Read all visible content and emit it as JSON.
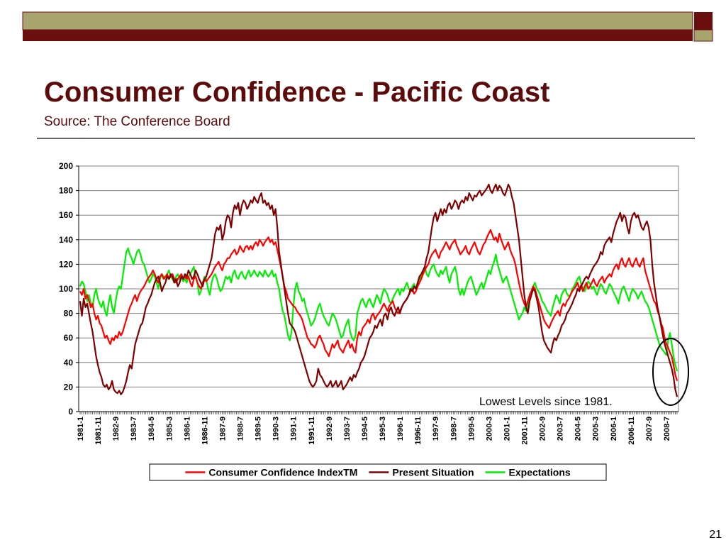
{
  "header": {
    "title": "Consumer Confidence - Pacific Coast",
    "subtitle": "Source:  The Conference Board"
  },
  "page_number": "21",
  "chart_data": {
    "type": "line",
    "annotation": "Lowest Levels since 1981.",
    "ylim": [
      0,
      200
    ],
    "yticks": [
      0,
      20,
      40,
      60,
      80,
      100,
      120,
      140,
      160,
      180,
      200
    ],
    "grid": true,
    "legend": "bottom",
    "categories": [
      "1981-1",
      null,
      null,
      null,
      null,
      null,
      null,
      null,
      null,
      null,
      "1981-11",
      null,
      null,
      null,
      null,
      null,
      null,
      null,
      null,
      null,
      "1982-9",
      null,
      null,
      null,
      null,
      null,
      null,
      null,
      null,
      null,
      "1983-7",
      null,
      null,
      null,
      null,
      null,
      null,
      null,
      null,
      null,
      "1984-5",
      null,
      null,
      null,
      null,
      null,
      null,
      null,
      null,
      null,
      "1985-3",
      null,
      null,
      null,
      null,
      null,
      null,
      null,
      null,
      null,
      "1986-1",
      null,
      null,
      null,
      null,
      null,
      null,
      null,
      null,
      null,
      "1986-11",
      null,
      null,
      null,
      null,
      null,
      null,
      null,
      null,
      null,
      "1987-9",
      null,
      null,
      null,
      null,
      null,
      null,
      null,
      null,
      null,
      "1988-7",
      null,
      null,
      null,
      null,
      null,
      null,
      null,
      null,
      null,
      "1989-5",
      null,
      null,
      null,
      null,
      null,
      null,
      null,
      null,
      null,
      "1990-3",
      null,
      null,
      null,
      null,
      null,
      null,
      null,
      null,
      null,
      "1991-1",
      null,
      null,
      null,
      null,
      null,
      null,
      null,
      null,
      null,
      "1991-11",
      null,
      null,
      null,
      null,
      null,
      null,
      null,
      null,
      null,
      "1992-9",
      null,
      null,
      null,
      null,
      null,
      null,
      null,
      null,
      null,
      "1993-7",
      null,
      null,
      null,
      null,
      null,
      null,
      null,
      null,
      null,
      "1994-5",
      null,
      null,
      null,
      null,
      null,
      null,
      null,
      null,
      null,
      "1995-3",
      null,
      null,
      null,
      null,
      null,
      null,
      null,
      null,
      null,
      "1996-1",
      null,
      null,
      null,
      null,
      null,
      null,
      null,
      null,
      null,
      "1996-11",
      null,
      null,
      null,
      null,
      null,
      null,
      null,
      null,
      null,
      "1997-9",
      null,
      null,
      null,
      null,
      null,
      null,
      null,
      null,
      null,
      "1998-7",
      null,
      null,
      null,
      null,
      null,
      null,
      null,
      null,
      null,
      "1999-5",
      null,
      null,
      null,
      null,
      null,
      null,
      null,
      null,
      null,
      "2000-3",
      null,
      null,
      null,
      null,
      null,
      null,
      null,
      null,
      null,
      "2001-1",
      null,
      null,
      null,
      null,
      null,
      null,
      null,
      null,
      null,
      "2001-11",
      null,
      null,
      null,
      null,
      null,
      null,
      null,
      null,
      null,
      "2002-9",
      null,
      null,
      null,
      null,
      null,
      null,
      null,
      null,
      null,
      "2003-7",
      null,
      null,
      null,
      null,
      null,
      null,
      null,
      null,
      null,
      "2004-5",
      null,
      null,
      null,
      null,
      null,
      null,
      null,
      null,
      null,
      "2005-3",
      null,
      null,
      null,
      null,
      null,
      null,
      null,
      null,
      null,
      "2006-1",
      null,
      null,
      null,
      null,
      null,
      null,
      null,
      null,
      null,
      "2006-11",
      null,
      null,
      null,
      null,
      null,
      null,
      null,
      null,
      null,
      "2007-9",
      null,
      null,
      null,
      null,
      null,
      null,
      null,
      null,
      null,
      "2008-7",
      null,
      null,
      null,
      null,
      null,
      null
    ],
    "series": [
      {
        "name": "Consumer Confidence IndexTM",
        "color": "#ff0000",
        "values": [
          98,
          95,
          100,
          92,
          95,
          90,
          85,
          88,
          80,
          75,
          78,
          72,
          70,
          65,
          60,
          62,
          58,
          55,
          60,
          58,
          62,
          60,
          65,
          62,
          65,
          70,
          75,
          80,
          85,
          88,
          92,
          95,
          90,
          95,
          98,
          100,
          102,
          105,
          108,
          110,
          112,
          115,
          112,
          108,
          105,
          110,
          112,
          108,
          110,
          112,
          108,
          110,
          112,
          108,
          105,
          108,
          110,
          112,
          108,
          110,
          108,
          110,
          105,
          102,
          108,
          110,
          105,
          102,
          100,
          105,
          108,
          106,
          108,
          110,
          112,
          115,
          118,
          120,
          122,
          118,
          115,
          120,
          122,
          125,
          125,
          128,
          130,
          132,
          128,
          130,
          135,
          132,
          130,
          134,
          135,
          132,
          135,
          132,
          136,
          138,
          135,
          140,
          138,
          135,
          138,
          140,
          142,
          138,
          140,
          136,
          138,
          132,
          125,
          118,
          110,
          102,
          98,
          92,
          90,
          88,
          86,
          85,
          82,
          80,
          78,
          75,
          70,
          65,
          60,
          58,
          55,
          54,
          52,
          55,
          60,
          62,
          58,
          55,
          50,
          48,
          45,
          50,
          55,
          52,
          55,
          58,
          52,
          50,
          48,
          52,
          55,
          58,
          52,
          55,
          50,
          48,
          60,
          65,
          62,
          68,
          70,
          72,
          75,
          72,
          78,
          80,
          75,
          78,
          80,
          82,
          85,
          88,
          85,
          82,
          86,
          88,
          90,
          85,
          82,
          80,
          82,
          85,
          88,
          90,
          92,
          95,
          98,
          100,
          96,
          98,
          102,
          105,
          108,
          112,
          115,
          118,
          120,
          125,
          128,
          130,
          132,
          128,
          125,
          130,
          132,
          135,
          138,
          135,
          132,
          136,
          138,
          140,
          135,
          132,
          128,
          130,
          132,
          135,
          130,
          128,
          132,
          135,
          138,
          134,
          130,
          128,
          132,
          136,
          138,
          142,
          145,
          148,
          144,
          140,
          142,
          138,
          145,
          140,
          136,
          132,
          135,
          138,
          132,
          128,
          125,
          120,
          112,
          105,
          98,
          92,
          88,
          85,
          90,
          95,
          98,
          102,
          100,
          95,
          90,
          85,
          80,
          75,
          72,
          70,
          68,
          72,
          75,
          78,
          80,
          82,
          78,
          85,
          88,
          86,
          90,
          92,
          95,
          98,
          100,
          102,
          105,
          100,
          103,
          98,
          102,
          105,
          100,
          102,
          105,
          108,
          104,
          102,
          106,
          108,
          110,
          105,
          108,
          110,
          112,
          110,
          115,
          118,
          120,
          116,
          122,
          125,
          120,
          118,
          122,
          125,
          120,
          118,
          122,
          125,
          120,
          118,
          122,
          125,
          115,
          110,
          105,
          100,
          95,
          90,
          88,
          82,
          78,
          72,
          68,
          60,
          55,
          52,
          48,
          45,
          38,
          30,
          25
        ]
      },
      {
        "name": "Present Situation",
        "color": "#800000",
        "values": [
          90,
          78,
          92,
          85,
          88,
          80,
          72,
          65,
          55,
          45,
          38,
          32,
          28,
          22,
          20,
          22,
          18,
          20,
          25,
          18,
          16,
          15,
          17,
          14,
          16,
          20,
          25,
          32,
          38,
          35,
          45,
          55,
          60,
          65,
          70,
          72,
          78,
          85,
          88,
          92,
          95,
          100,
          105,
          108,
          110,
          105,
          98,
          102,
          105,
          110,
          108,
          112,
          110,
          105,
          108,
          102,
          105,
          110,
          108,
          112,
          110,
          115,
          112,
          108,
          110,
          115,
          112,
          108,
          105,
          102,
          108,
          110,
          115,
          120,
          125,
          135,
          145,
          150,
          148,
          152,
          140,
          145,
          155,
          160,
          158,
          150,
          162,
          168,
          165,
          170,
          160,
          168,
          172,
          170,
          165,
          168,
          172,
          170,
          175,
          172,
          170,
          175,
          178,
          170,
          172,
          168,
          170,
          165,
          168,
          160,
          165,
          150,
          130,
          120,
          110,
          100,
          90,
          80,
          72,
          70,
          68,
          65,
          60,
          55,
          50,
          45,
          40,
          35,
          30,
          25,
          22,
          20,
          22,
          25,
          35,
          30,
          28,
          25,
          22,
          20,
          22,
          25,
          20,
          22,
          25,
          20,
          22,
          25,
          18,
          20,
          22,
          25,
          28,
          25,
          30,
          28,
          32,
          35,
          40,
          42,
          45,
          50,
          55,
          60,
          62,
          65,
          70,
          68,
          72,
          75,
          70,
          78,
          80,
          75,
          82,
          85,
          80,
          78,
          82,
          85,
          80,
          85,
          88,
          90,
          92,
          95,
          100,
          98,
          102,
          100,
          105,
          110,
          112,
          115,
          118,
          125,
          130,
          140,
          150,
          158,
          162,
          155,
          160,
          165,
          160,
          165,
          162,
          168,
          170,
          165,
          168,
          172,
          170,
          165,
          170,
          172,
          170,
          175,
          172,
          178,
          175,
          172,
          176,
          175,
          178,
          180,
          176,
          178,
          180,
          182,
          185,
          180,
          178,
          182,
          185,
          180,
          184,
          182,
          178,
          176,
          180,
          185,
          182,
          175,
          170,
          160,
          150,
          140,
          125,
          110,
          95,
          85,
          80,
          90,
          95,
          100,
          98,
          92,
          85,
          75,
          65,
          58,
          55,
          52,
          50,
          48,
          55,
          60,
          58,
          62,
          65,
          70,
          72,
          75,
          80,
          82,
          85,
          88,
          92,
          95,
          100,
          98,
          102,
          105,
          108,
          110,
          108,
          112,
          115,
          118,
          120,
          122,
          125,
          130,
          128,
          135,
          138,
          140,
          142,
          138,
          145,
          150,
          155,
          158,
          162,
          155,
          160,
          158,
          150,
          145,
          155,
          160,
          162,
          158,
          160,
          155,
          150,
          148,
          152,
          155,
          150,
          140,
          120,
          105,
          95,
          85,
          78,
          70,
          62,
          55,
          50,
          45,
          40,
          35,
          28,
          18,
          12
        ]
      },
      {
        "name": "Expectations",
        "color": "#00ee00",
        "values": [
          102,
          106,
          104,
          98,
          90,
          95,
          88,
          85,
          95,
          100,
          92,
          88,
          85,
          90,
          82,
          78,
          88,
          95,
          85,
          80,
          90,
          98,
          102,
          100,
          110,
          120,
          130,
          133,
          128,
          125,
          120,
          125,
          130,
          132,
          128,
          122,
          120,
          115,
          110,
          105,
          108,
          112,
          110,
          105,
          100,
          108,
          112,
          110,
          108,
          112,
          115,
          110,
          108,
          105,
          110,
          112,
          108,
          110,
          106,
          108,
          105,
          110,
          112,
          115,
          118,
          110,
          105,
          95,
          98,
          105,
          110,
          108,
          100,
          95,
          105,
          110,
          112,
          108,
          102,
          98,
          100,
          105,
          110,
          108,
          110,
          105,
          112,
          115,
          110,
          108,
          112,
          114,
          110,
          108,
          112,
          115,
          110,
          112,
          115,
          112,
          110,
          114,
          112,
          110,
          115,
          112,
          110,
          112,
          115,
          110,
          112,
          105,
          100,
          90,
          82,
          78,
          70,
          62,
          58,
          65,
          85,
          100,
          105,
          98,
          95,
          90,
          92,
          85,
          80,
          75,
          70,
          72,
          75,
          80,
          85,
          88,
          82,
          78,
          75,
          72,
          70,
          75,
          80,
          78,
          75,
          70,
          65,
          60,
          62,
          68,
          72,
          75,
          65,
          60,
          58,
          62,
          80,
          85,
          90,
          92,
          88,
          85,
          90,
          92,
          88,
          85,
          90,
          95,
          92,
          88,
          95,
          100,
          98,
          95,
          90,
          88,
          92,
          95,
          98,
          100,
          95,
          100,
          98,
          102,
          105,
          100,
          98,
          102,
          104,
          100,
          105,
          108,
          110,
          115,
          118,
          112,
          110,
          115,
          118,
          120,
          115,
          112,
          110,
          115,
          112,
          115,
          118,
          110,
          105,
          112,
          115,
          118,
          112,
          100,
          95,
          100,
          95,
          100,
          105,
          108,
          110,
          105,
          100,
          95,
          98,
          102,
          105,
          100,
          105,
          110,
          115,
          112,
          118,
          122,
          128,
          120,
          115,
          110,
          105,
          108,
          110,
          105,
          100,
          95,
          90,
          85,
          80,
          75,
          78,
          80,
          85,
          82,
          85,
          92,
          98,
          102,
          105,
          100,
          98,
          95,
          90,
          88,
          85,
          82,
          80,
          78,
          85,
          90,
          95,
          92,
          88,
          95,
          98,
          100,
          96,
          94,
          95,
          100,
          102,
          105,
          108,
          110,
          104,
          100,
          98,
          102,
          106,
          104,
          100,
          102,
          98,
          95,
          100,
          104,
          102,
          98,
          96,
          100,
          104,
          102,
          98,
          95,
          92,
          88,
          95,
          100,
          102,
          98,
          94,
          90,
          96,
          100,
          98,
          96,
          92,
          95,
          98,
          94,
          90,
          88,
          85,
          80,
          75,
          70,
          65,
          60,
          55,
          52,
          50,
          48,
          46,
          58,
          64,
          55,
          45,
          38,
          33
        ]
      }
    ]
  }
}
